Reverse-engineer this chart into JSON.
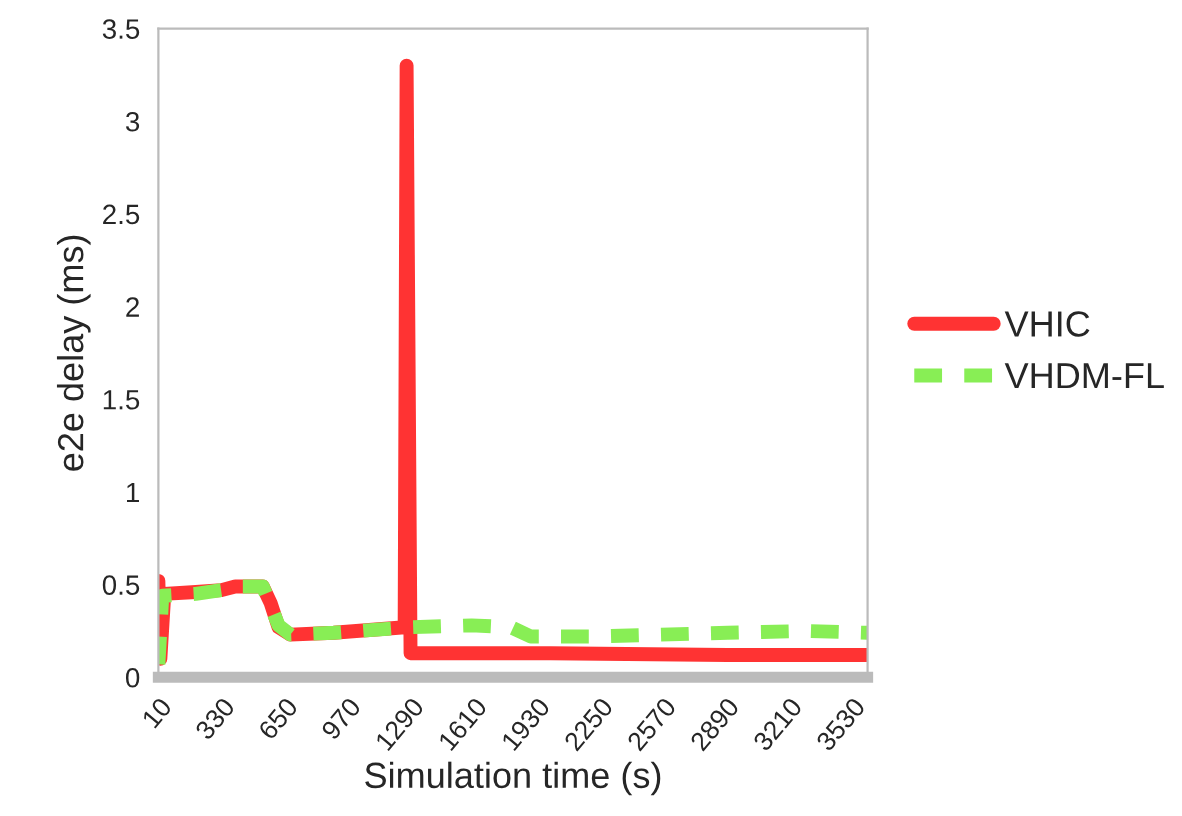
{
  "chart_data": {
    "type": "line",
    "xlabel": "Simulation time (s)",
    "ylabel": "e2e delay (ms)",
    "xlim": [
      10,
      3610
    ],
    "xticks": [
      10,
      330,
      650,
      970,
      1290,
      1610,
      1930,
      2250,
      2570,
      2890,
      3210,
      3530
    ],
    "ylim": [
      0,
      3.5
    ],
    "yticks": [
      0,
      0.5,
      1,
      1.5,
      2,
      2.5,
      3,
      3.5
    ],
    "grid": false,
    "legend": "right",
    "marker": "none",
    "series": [
      {
        "name": "VHIC",
        "color": "#ff3333",
        "line_style": "solid",
        "x": [
          10,
          20,
          40,
          200,
          330,
          400,
          540,
          580,
          620,
          680,
          900,
          1260,
          1270,
          1290,
          1600,
          2000,
          2900,
          3610
        ],
        "values": [
          0.52,
          0.1,
          0.45,
          0.46,
          0.47,
          0.49,
          0.49,
          0.4,
          0.27,
          0.23,
          0.24,
          0.27,
          3.3,
          0.13,
          0.13,
          0.13,
          0.12,
          0.12
        ]
      },
      {
        "name": "VHDM-FL",
        "color": "#88ee55",
        "line_style": "dashed",
        "x": [
          10,
          30,
          200,
          330,
          400,
          540,
          620,
          680,
          900,
          1290,
          1600,
          1800,
          1900,
          2200,
          2900,
          3300,
          3610
        ],
        "values": [
          0.07,
          0.44,
          0.45,
          0.47,
          0.49,
          0.49,
          0.28,
          0.23,
          0.24,
          0.27,
          0.28,
          0.27,
          0.22,
          0.22,
          0.24,
          0.25,
          0.24
        ]
      }
    ]
  }
}
